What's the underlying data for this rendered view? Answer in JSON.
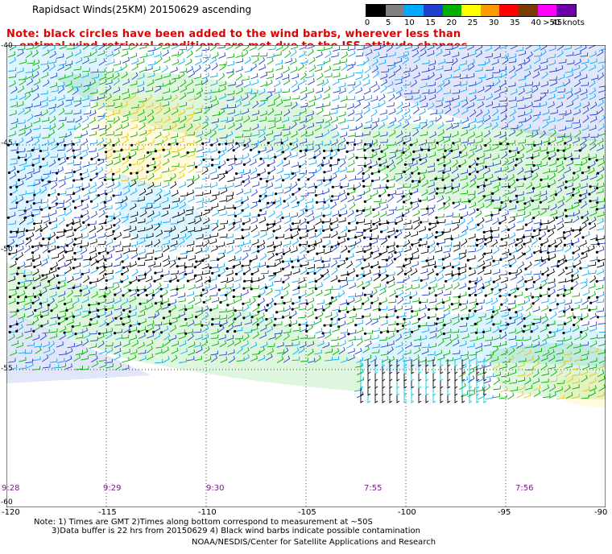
{
  "title": "Rapidsact Winds(25KM) 20150629 ascending",
  "note_line1": "Note: black circles have been added to the wind barbs, wherever less than",
  "note_line2": "optimal wind retrieval conditions are met due to the ISS attitude changes.",
  "legend": {
    "labels": [
      "0",
      "5",
      "10",
      "15",
      "20",
      "25",
      "30",
      "35",
      "40",
      "45",
      ">50 knots"
    ],
    "colors": [
      "#000000",
      "#7f7f7f",
      "#00aaff",
      "#1f3fcf",
      "#00b000",
      "#ffff00",
      "#ff9900",
      "#ff0000",
      "#7a3b00",
      "#ff00ff",
      "#6a00aa"
    ]
  },
  "lon_labels": [
    "-120",
    "-115",
    "-110",
    "-105",
    "-100",
    "-95",
    "-90"
  ],
  "lat_labels": [
    "-40",
    "-45",
    "-50",
    "-55",
    "-60"
  ],
  "pass_times": [
    "9:28",
    "9:29",
    "9:30",
    "7:55",
    "7:56"
  ],
  "footer_line1": "Note: 1) Times are GMT 2)Times along bottom correspond to measurement at ~50S",
  "footer_line2": "3)Data buffer is 22 hrs from 20150629 4) Black wind barbs indicate possible contamination",
  "footer_line3": "NOAA/NESDIS/Center for Satellite Applications and Research"
}
